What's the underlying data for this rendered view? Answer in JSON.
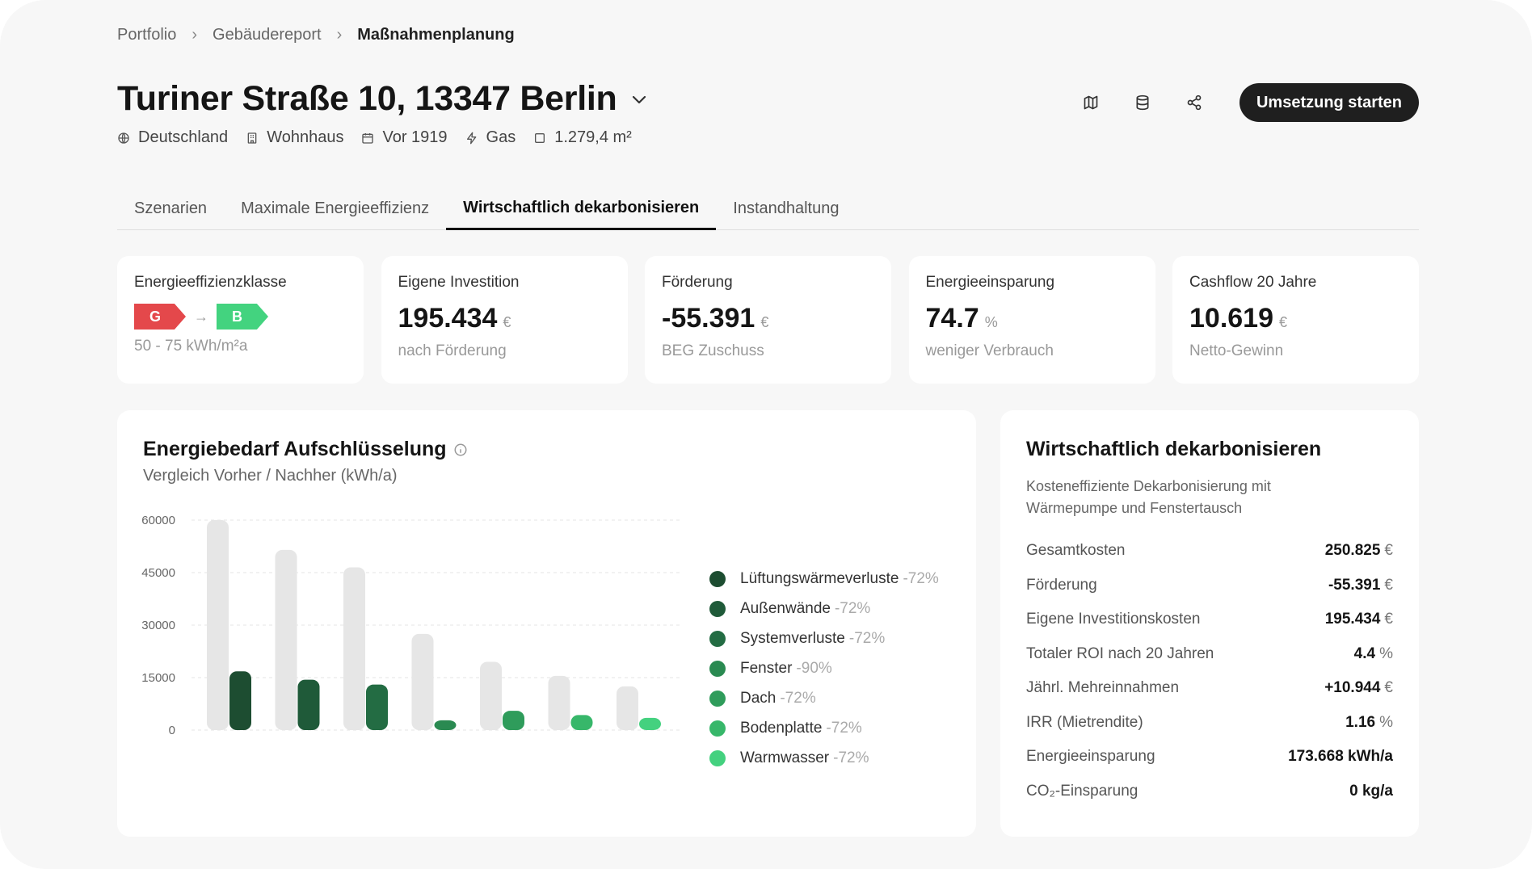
{
  "breadcrumb": {
    "items": [
      "Portfolio",
      "Gebäudereport",
      "Maßnahmenplanung"
    ],
    "sep": "›"
  },
  "header": {
    "title": "Turiner Straße 10, 13347 Berlin",
    "meta": {
      "country": "Deutschland",
      "type": "Wohnhaus",
      "year": "Vor 1919",
      "energy": "Gas",
      "area": "1.279,4 m²"
    },
    "primary_action": "Umsetzung starten",
    "tools": [
      "map-icon",
      "database-icon",
      "share-icon"
    ]
  },
  "tabs": [
    {
      "label": "Szenarien",
      "active": false
    },
    {
      "label": "Maximale Energieeffizienz",
      "active": false
    },
    {
      "label": "Wirtschaftlich dekarbonisieren",
      "active": true
    },
    {
      "label": "Instandhaltung",
      "active": false
    }
  ],
  "kpis": {
    "class": {
      "label": "Energieeffizienzklasse",
      "from": "G",
      "to": "B",
      "sub": "50 - 75 kWh/m²a",
      "arrow": "→"
    },
    "investment": {
      "label": "Eigene Investition",
      "value": "195.434",
      "unit": "€",
      "sub": "nach Förderung"
    },
    "funding": {
      "label": "Förderung",
      "value": "-55.391",
      "unit": "€",
      "sub": "BEG Zuschuss"
    },
    "saving": {
      "label": "Energieeinsparung",
      "value": "74.7",
      "unit": "%",
      "sub": "weniger Verbrauch"
    },
    "cashflow": {
      "label": "Cashflow 20 Jahre",
      "value": "10.619",
      "unit": "€",
      "sub": "Netto-Gewinn"
    }
  },
  "chart_data": {
    "type": "bar",
    "title": "Energiebedarf Aufschlüsselung",
    "subtitle": "Vergleich Vorher / Nachher (kWh/a)",
    "categories": [
      "Lüftungswärmeverluste",
      "Außenwände",
      "Systemverluste",
      "Fenster",
      "Dach",
      "Bodenplatte",
      "Warmwasser"
    ],
    "series": [
      {
        "name": "Vorher",
        "values": [
          60000,
          51500,
          46500,
          27500,
          19500,
          15500,
          12500
        ],
        "color": "#e6e6e6"
      },
      {
        "name": "Nachher",
        "values": [
          16800,
          14400,
          13000,
          2800,
          5500,
          4300,
          3500
        ],
        "colors": [
          "#1d4d31",
          "#1f5a39",
          "#236c43",
          "#2a8a51",
          "#2f9c5b",
          "#37b76a",
          "#44d17f"
        ]
      }
    ],
    "reductions": [
      "-72%",
      "-72%",
      "-72%",
      "-90%",
      "-72%",
      "-72%",
      "-72%"
    ],
    "yticks": [
      "60000",
      "45000",
      "30000",
      "15000",
      "0"
    ],
    "ylim": [
      0,
      60000
    ],
    "grid": true,
    "legend": "right"
  },
  "summary": {
    "title": "Wirtschaftlich dekarbonisieren",
    "desc": "Kosteneffiziente Dekarbonisierung mit Wärmepumpe und Fenstertausch",
    "rows": [
      {
        "k": "Gesamtkosten",
        "v": "250.825",
        "u": "€"
      },
      {
        "k": "Förderung",
        "v": "-55.391",
        "u": "€"
      },
      {
        "k": "Eigene Investitionskosten",
        "v": "195.434",
        "u": "€"
      },
      {
        "k": "Totaler ROI nach 20 Jahren",
        "v": "4.4",
        "u": "%"
      },
      {
        "k": "Jährl. Mehreinnahmen",
        "v": "+10.944",
        "u": "€"
      },
      {
        "k": "IRR (Mietrendite)",
        "v": "1.16",
        "u": "%"
      },
      {
        "k": "Energieeinsparung",
        "v": "173.668 kWh/a",
        "u": ""
      },
      {
        "k": "CO₂-Einsparung",
        "v": "0 kg/a",
        "u": ""
      }
    ]
  }
}
